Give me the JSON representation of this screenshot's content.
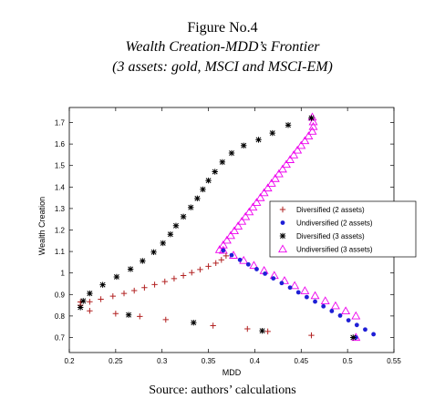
{
  "figure": {
    "label": "Figure No.4",
    "title": "Wealth Creation-MDD’s Frontier",
    "subtitle": "(3 assets: gold, MSCI and MSCI-EM)",
    "source": "Source: authors’ calculations"
  },
  "chart_data": {
    "type": "scatter",
    "xlabel": "MDD",
    "ylabel": "Wealth Creation",
    "xlim": [
      0.2,
      0.55
    ],
    "ylim": [
      0.63,
      1.77
    ],
    "xticks": [
      "0.2",
      "0.25",
      "0.3",
      "0.35",
      "0.4",
      "0.45",
      "0.5",
      "0.55"
    ],
    "yticks": [
      "0.7",
      "0.8",
      "0.9",
      "1",
      "1.1",
      "1.2",
      "1.3",
      "1.4",
      "1.5",
      "1.6",
      "1.7"
    ],
    "grid": false,
    "legend_position": "right",
    "series": [
      {
        "name": "Diversified (2 assets)",
        "marker": "plus",
        "color": "#b22222",
        "points": [
          [
            0.212,
            0.865
          ],
          [
            0.222,
            0.866
          ],
          [
            0.234,
            0.878
          ],
          [
            0.247,
            0.892
          ],
          [
            0.259,
            0.905
          ],
          [
            0.27,
            0.918
          ],
          [
            0.281,
            0.932
          ],
          [
            0.292,
            0.946
          ],
          [
            0.303,
            0.96
          ],
          [
            0.313,
            0.974
          ],
          [
            0.323,
            0.988
          ],
          [
            0.332,
            1.002
          ],
          [
            0.341,
            1.016
          ],
          [
            0.35,
            1.031
          ],
          [
            0.358,
            1.046
          ],
          [
            0.364,
            1.061
          ],
          [
            0.369,
            1.08
          ],
          [
            0.212,
            0.85
          ],
          [
            0.222,
            0.824
          ],
          [
            0.25,
            0.811
          ],
          [
            0.276,
            0.798
          ],
          [
            0.304,
            0.783
          ],
          [
            0.355,
            0.755
          ],
          [
            0.392,
            0.74
          ],
          [
            0.414,
            0.728
          ],
          [
            0.461,
            0.71
          ]
        ]
      },
      {
        "name": "Undiversified (2 assets)",
        "marker": "dot",
        "color": "#1f1fd6",
        "points": [
          [
            0.366,
            1.105
          ],
          [
            0.375,
            1.083
          ],
          [
            0.384,
            1.061
          ],
          [
            0.393,
            1.04
          ],
          [
            0.402,
            1.018
          ],
          [
            0.411,
            0.997
          ],
          [
            0.42,
            0.975
          ],
          [
            0.429,
            0.953
          ],
          [
            0.438,
            0.932
          ],
          [
            0.447,
            0.91
          ],
          [
            0.456,
            0.888
          ],
          [
            0.465,
            0.867
          ],
          [
            0.474,
            0.845
          ],
          [
            0.483,
            0.823
          ],
          [
            0.492,
            0.802
          ],
          [
            0.501,
            0.78
          ],
          [
            0.51,
            0.758
          ],
          [
            0.519,
            0.737
          ],
          [
            0.528,
            0.715
          ],
          [
            0.509,
            0.7
          ]
        ]
      },
      {
        "name": "Diversified (3 assets)",
        "marker": "star",
        "color": "#000000",
        "points": [
          [
            0.212,
            0.84
          ],
          [
            0.215,
            0.87
          ],
          [
            0.222,
            0.905
          ],
          [
            0.236,
            0.945
          ],
          [
            0.251,
            0.982
          ],
          [
            0.266,
            1.018
          ],
          [
            0.279,
            1.056
          ],
          [
            0.291,
            1.097
          ],
          [
            0.301,
            1.139
          ],
          [
            0.309,
            1.18
          ],
          [
            0.315,
            1.22
          ],
          [
            0.323,
            1.262
          ],
          [
            0.331,
            1.305
          ],
          [
            0.338,
            1.347
          ],
          [
            0.344,
            1.389
          ],
          [
            0.35,
            1.43
          ],
          [
            0.357,
            1.471
          ],
          [
            0.365,
            1.516
          ],
          [
            0.375,
            1.558
          ],
          [
            0.388,
            1.593
          ],
          [
            0.404,
            1.62
          ],
          [
            0.419,
            1.651
          ],
          [
            0.436,
            1.688
          ],
          [
            0.461,
            1.721
          ],
          [
            0.264,
            0.805
          ],
          [
            0.334,
            0.769
          ],
          [
            0.408,
            0.731
          ],
          [
            0.506,
            0.7
          ]
        ]
      },
      {
        "name": "Undiversified (3 assets)",
        "marker": "triangle",
        "color": "#ee00ee",
        "points": [
          [
            0.362,
            1.108
          ],
          [
            0.366,
            1.13
          ],
          [
            0.37,
            1.152
          ],
          [
            0.374,
            1.174
          ],
          [
            0.378,
            1.196
          ],
          [
            0.382,
            1.218
          ],
          [
            0.386,
            1.24
          ],
          [
            0.39,
            1.262
          ],
          [
            0.394,
            1.284
          ],
          [
            0.398,
            1.306
          ],
          [
            0.402,
            1.328
          ],
          [
            0.406,
            1.35
          ],
          [
            0.41,
            1.373
          ],
          [
            0.414,
            1.395
          ],
          [
            0.418,
            1.417
          ],
          [
            0.422,
            1.439
          ],
          [
            0.426,
            1.461
          ],
          [
            0.43,
            1.483
          ],
          [
            0.434,
            1.505
          ],
          [
            0.438,
            1.527
          ],
          [
            0.442,
            1.549
          ],
          [
            0.446,
            1.571
          ],
          [
            0.45,
            1.593
          ],
          [
            0.454,
            1.615
          ],
          [
            0.458,
            1.637
          ],
          [
            0.462,
            1.659
          ],
          [
            0.463,
            1.681
          ],
          [
            0.463,
            1.703
          ],
          [
            0.462,
            1.725
          ],
          [
            0.366,
            1.105
          ],
          [
            0.377,
            1.082
          ],
          [
            0.388,
            1.058
          ],
          [
            0.399,
            1.035
          ],
          [
            0.41,
            1.011
          ],
          [
            0.421,
            0.988
          ],
          [
            0.432,
            0.964
          ],
          [
            0.443,
            0.941
          ],
          [
            0.454,
            0.917
          ],
          [
            0.465,
            0.894
          ],
          [
            0.476,
            0.87
          ],
          [
            0.487,
            0.847
          ],
          [
            0.498,
            0.823
          ],
          [
            0.509,
            0.8
          ],
          [
            0.509,
            0.7
          ]
        ]
      }
    ]
  }
}
